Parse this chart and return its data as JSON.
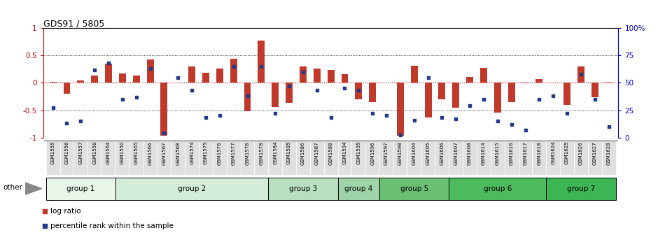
{
  "title": "GDS91 / 5805",
  "sample_labels": [
    "GSM1555",
    "GSM1556",
    "GSM1557",
    "GSM1558",
    "GSM1564",
    "GSM1550",
    "GSM1565",
    "GSM1566",
    "GSM1567",
    "GSM1568",
    "GSM1574",
    "GSM1575",
    "GSM1576",
    "GSM1577",
    "GSM1578",
    "GSM1578",
    "GSM1584",
    "GSM1585",
    "GSM1586",
    "GSM1587",
    "GSM1588",
    "GSM1594",
    "GSM1595",
    "GSM1596",
    "GSM1597",
    "GSM1598",
    "GSM1604",
    "GSM1605",
    "GSM1606",
    "GSM1607",
    "GSM1608",
    "GSM1614",
    "GSM1615",
    "GSM1616",
    "GSM1617",
    "GSM1618",
    "GSM1624",
    "GSM1625",
    "GSM1626",
    "GSM1627",
    "GSM1628"
  ],
  "log_ratios": [
    0.02,
    -0.2,
    0.05,
    0.13,
    0.35,
    0.17,
    0.14,
    0.43,
    -0.97,
    0.01,
    0.3,
    0.18,
    0.26,
    0.44,
    -0.52,
    0.78,
    -0.44,
    -0.36,
    0.3,
    0.26,
    0.23,
    0.16,
    -0.3,
    -0.35,
    0.01,
    -0.97,
    0.31,
    -0.63,
    -0.3,
    -0.45,
    0.11,
    0.28,
    -0.55,
    -0.35,
    -0.01,
    0.07,
    0.01,
    -0.4,
    0.3,
    -0.26,
    -0.01
  ],
  "percentile_ranks": [
    27,
    13,
    15,
    62,
    68,
    35,
    37,
    63,
    4,
    55,
    43,
    18,
    20,
    65,
    38,
    65,
    22,
    47,
    60,
    43,
    18,
    45,
    43,
    22,
    20,
    2,
    16,
    55,
    18,
    17,
    29,
    35,
    15,
    12,
    7,
    35,
    38,
    22,
    58,
    35,
    10
  ],
  "groups": [
    {
      "name": "group 1",
      "start": 0,
      "end": 4,
      "color": "#e8f5e8"
    },
    {
      "name": "group 2",
      "start": 5,
      "end": 15,
      "color": "#d4edda"
    },
    {
      "name": "group 3",
      "start": 16,
      "end": 20,
      "color": "#b8dfc0"
    },
    {
      "name": "group 4",
      "start": 21,
      "end": 23,
      "color": "#9fd4a8"
    },
    {
      "name": "group 5",
      "start": 24,
      "end": 28,
      "color": "#6abf72"
    },
    {
      "name": "group 6",
      "start": 29,
      "end": 35,
      "color": "#4cbb5e"
    },
    {
      "name": "group 7",
      "start": 36,
      "end": 40,
      "color": "#3cb554"
    }
  ],
  "bar_color": "#c0392b",
  "dot_color": "#1f3a8a",
  "bar_width": 0.5,
  "ylim": [
    -1,
    1
  ],
  "y2lim": [
    0,
    100
  ],
  "yticks_left": [
    -1,
    -0.5,
    0,
    0.5,
    1
  ],
  "ytick_labels_left": [
    "-1",
    "-0.5",
    "0",
    "0.5",
    "1"
  ],
  "yticks_right": [
    0,
    25,
    50,
    75,
    100
  ],
  "ytick_labels_right": [
    "0",
    "25",
    "50",
    "75",
    "100%"
  ],
  "hline_color": "#cc0000",
  "grid_color": "#555555",
  "left_axis_color": "#cc0000",
  "right_axis_color": "#0000cc",
  "other_label": "other",
  "legend_log": "log ratio",
  "legend_pct": "percentile rank within the sample",
  "xlabel_color": "#333333",
  "xtick_bg": "#e0e0e0"
}
